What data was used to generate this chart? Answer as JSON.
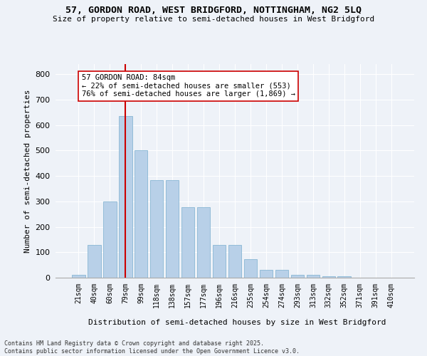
{
  "title1": "57, GORDON ROAD, WEST BRIDGFORD, NOTTINGHAM, NG2 5LQ",
  "title2": "Size of property relative to semi-detached houses in West Bridgford",
  "xlabel": "Distribution of semi-detached houses by size in West Bridgford",
  "ylabel": "Number of semi-detached properties",
  "bar_labels": [
    "21sqm",
    "40sqm",
    "60sqm",
    "79sqm",
    "99sqm",
    "118sqm",
    "138sqm",
    "157sqm",
    "177sqm",
    "196sqm",
    "216sqm",
    "235sqm",
    "254sqm",
    "274sqm",
    "293sqm",
    "313sqm",
    "332sqm",
    "352sqm",
    "371sqm",
    "391sqm",
    "410sqm"
  ],
  "bar_values": [
    10,
    128,
    300,
    635,
    502,
    385,
    385,
    278,
    278,
    130,
    130,
    73,
    30,
    30,
    12,
    12,
    6,
    6,
    1,
    1,
    1
  ],
  "property_bin_index": 3,
  "annotation_title": "57 GORDON ROAD: 84sqm",
  "annotation_line1": "← 22% of semi-detached houses are smaller (553)",
  "annotation_line2": "76% of semi-detached houses are larger (1,869) →",
  "bar_color": "#b8d0e8",
  "bar_edge_color": "#7aaece",
  "vline_color": "#cc0000",
  "background_color": "#eef2f8",
  "grid_color": "#ffffff",
  "ylim": [
    0,
    840
  ],
  "yticks": [
    0,
    100,
    200,
    300,
    400,
    500,
    600,
    700,
    800
  ],
  "footnote1": "Contains HM Land Registry data © Crown copyright and database right 2025.",
  "footnote2": "Contains public sector information licensed under the Open Government Licence v3.0."
}
